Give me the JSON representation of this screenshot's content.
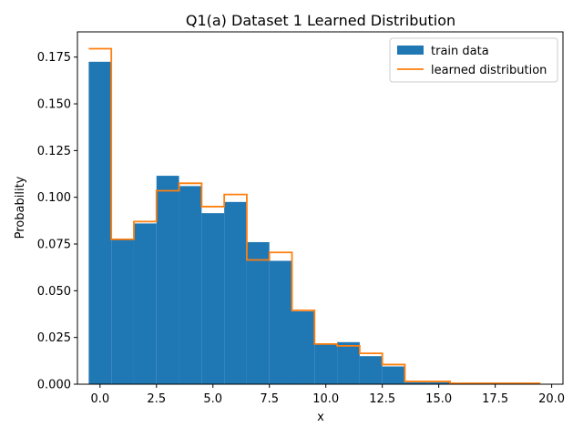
{
  "chart_data": {
    "type": "bar",
    "title": "Q1(a) Dataset 1 Learned Distribution",
    "xlabel": "x",
    "ylabel": "Probability",
    "xlim": [
      -1,
      20.5
    ],
    "ylim": [
      0,
      0.1885
    ],
    "xticks": [
      0.0,
      2.5,
      5.0,
      7.5,
      10.0,
      12.5,
      15.0,
      17.5,
      20.0
    ],
    "xtick_labels": [
      "0.0",
      "2.5",
      "5.0",
      "7.5",
      "10.0",
      "12.5",
      "15.0",
      "17.5",
      "20.0"
    ],
    "yticks": [
      0.0,
      0.025,
      0.05,
      0.075,
      0.1,
      0.125,
      0.15,
      0.175
    ],
    "ytick_labels": [
      "0.000",
      "0.025",
      "0.050",
      "0.075",
      "0.100",
      "0.125",
      "0.150",
      "0.175"
    ],
    "grid": false,
    "legend_position": "top-right",
    "x": [
      0,
      1,
      2,
      3,
      4,
      5,
      6,
      7,
      8,
      9,
      10,
      11,
      12,
      13,
      14,
      15,
      16,
      17,
      18,
      19
    ],
    "series": [
      {
        "name": "train data",
        "type": "bar",
        "color": "#1f77b4",
        "values": [
          0.1725,
          0.0775,
          0.086,
          0.1115,
          0.106,
          0.0915,
          0.0975,
          0.076,
          0.066,
          0.039,
          0.0215,
          0.0225,
          0.015,
          0.0095,
          0.001,
          0.001,
          0.0005,
          0.0,
          0.0,
          0.0
        ]
      },
      {
        "name": "learned distribution",
        "type": "step",
        "color": "#ff7f0e",
        "values": [
          0.1795,
          0.0775,
          0.087,
          0.1035,
          0.1075,
          0.095,
          0.1015,
          0.0665,
          0.0705,
          0.0395,
          0.0215,
          0.0205,
          0.0165,
          0.0105,
          0.0015,
          0.0015,
          0.0005,
          0.0005,
          0.0005,
          0.0005
        ]
      }
    ]
  }
}
